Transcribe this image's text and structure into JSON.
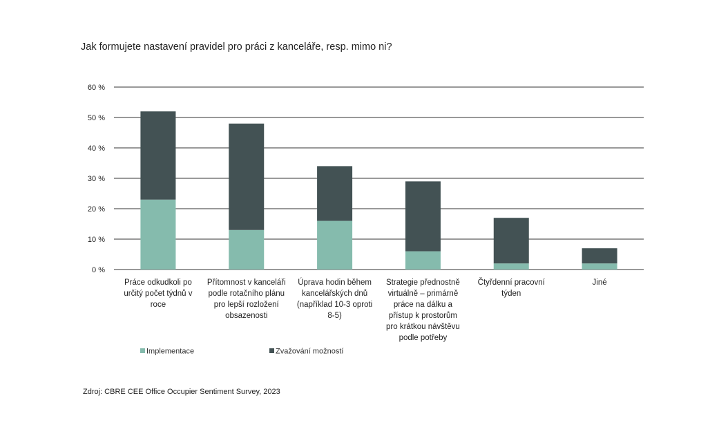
{
  "chart_data": {
    "type": "bar",
    "stacked": true,
    "title": "Jak formujete nastavení pravidel pro práci z kanceláře, resp. mimo ni?",
    "categories": [
      "Práce odkudkoli po určitý počet týdnů v roce",
      "Přítomnost v kanceláři podle rotačního plánu pro lepší rozložení obsazenosti",
      "Úprava hodin během kancelářských dnů (například 10-3 oproti 8-5)",
      "Strategie přednostně virtuálně – primárně práce na dálku a přístup k prostorům pro krátkou návštěvu podle potřeby",
      "Čtyřdenní pracovní týden",
      "Jiné"
    ],
    "category_lines": [
      [
        "Práce odkudkoli po",
        "určitý počet týdnů v",
        "roce"
      ],
      [
        "Přítomnost v kanceláři",
        "podle rotačního plánu",
        "pro lepší rozložení",
        "obsazenosti"
      ],
      [
        "Úprava hodin během",
        "kancelářských dnů",
        "(například 10-3 oproti",
        "8-5)"
      ],
      [
        "Strategie přednostně",
        "virtuálně – primárně",
        "práce na dálku a",
        "přístup k prostorům",
        "pro krátkou návštěvu",
        "podle potřeby"
      ],
      [
        "Čtyřdenní pracovní",
        "týden"
      ],
      [
        "Jiné"
      ]
    ],
    "series": [
      {
        "name": "Implementace",
        "values": [
          23,
          13,
          16,
          6,
          2,
          2
        ],
        "color": "#85bbad"
      },
      {
        "name": "Zvažování možností",
        "values": [
          29,
          35,
          18,
          23,
          15,
          5
        ],
        "color": "#435254"
      }
    ],
    "y_ticks": [
      "60 %",
      "50 %",
      "40 %",
      "30 %",
      "20 %",
      "10 %",
      "0 %"
    ],
    "ylim": [
      0,
      60
    ],
    "y_tick_step": 10,
    "grid": true,
    "legend_position": "bottom-left",
    "source": "Zdroj: CBRE CEE Office Occupier Sentiment  Survey, 2023"
  }
}
